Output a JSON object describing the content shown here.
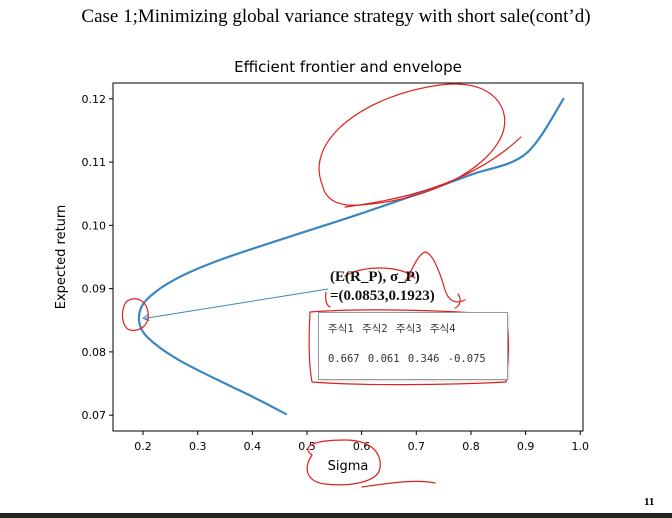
{
  "slide": {
    "title": "Case 1;Minimizing global variance strategy with short sale(cont’d)",
    "page_number": "11"
  },
  "chart_data": {
    "type": "line",
    "title": "Efficient frontier and envelope",
    "xlabel": "Sigma",
    "ylabel": "Expected return",
    "xlim": [
      0.145,
      1.005
    ],
    "ylim": [
      0.0675,
      0.1225
    ],
    "xticks": [
      0.2,
      0.3,
      0.4,
      0.5,
      0.6,
      0.7,
      0.8,
      0.9,
      1.0
    ],
    "yticks": [
      0.07,
      0.08,
      0.09,
      0.1,
      0.11,
      0.12
    ],
    "xtick_labels": [
      "0.2",
      "0.3",
      "0.4",
      "0.5",
      "0.6",
      "0.7",
      "0.8",
      "0.9",
      "1.0"
    ],
    "ytick_labels": [
      "0.07",
      "0.08",
      "0.09",
      "0.10",
      "0.11",
      "0.12"
    ],
    "grid": false,
    "series": [
      {
        "color": "#3a87c0",
        "x": [
          0.463,
          0.41,
          0.36,
          0.31,
          0.27,
          0.24,
          0.22,
          0.205,
          0.196,
          0.1923,
          0.196,
          0.205,
          0.22,
          0.245,
          0.28,
          0.33,
          0.4,
          0.5,
          0.6,
          0.7,
          0.8,
          0.9,
          0.97
        ],
        "y": [
          0.0701,
          0.0725,
          0.0746,
          0.0767,
          0.0785,
          0.0801,
          0.0814,
          0.0826,
          0.0838,
          0.0853,
          0.0869,
          0.0881,
          0.0893,
          0.0908,
          0.0924,
          0.0942,
          0.0963,
          0.0991,
          0.1019,
          0.1049,
          0.108,
          0.1113,
          0.1201
        ]
      }
    ],
    "annotation": {
      "point": [
        0.1923,
        0.0853
      ],
      "line1": "(E(R_P), σ_P)",
      "line2": "=(0.0853,0.1923)"
    },
    "weights_table": {
      "headers": [
        "주식1",
        "주식2",
        "주식3",
        "주식4"
      ],
      "values": [
        "0.667",
        "0.061",
        "0.346",
        "-0.075"
      ]
    },
    "line_color": "#3a87c0",
    "handwriting_color": "#e02020"
  }
}
